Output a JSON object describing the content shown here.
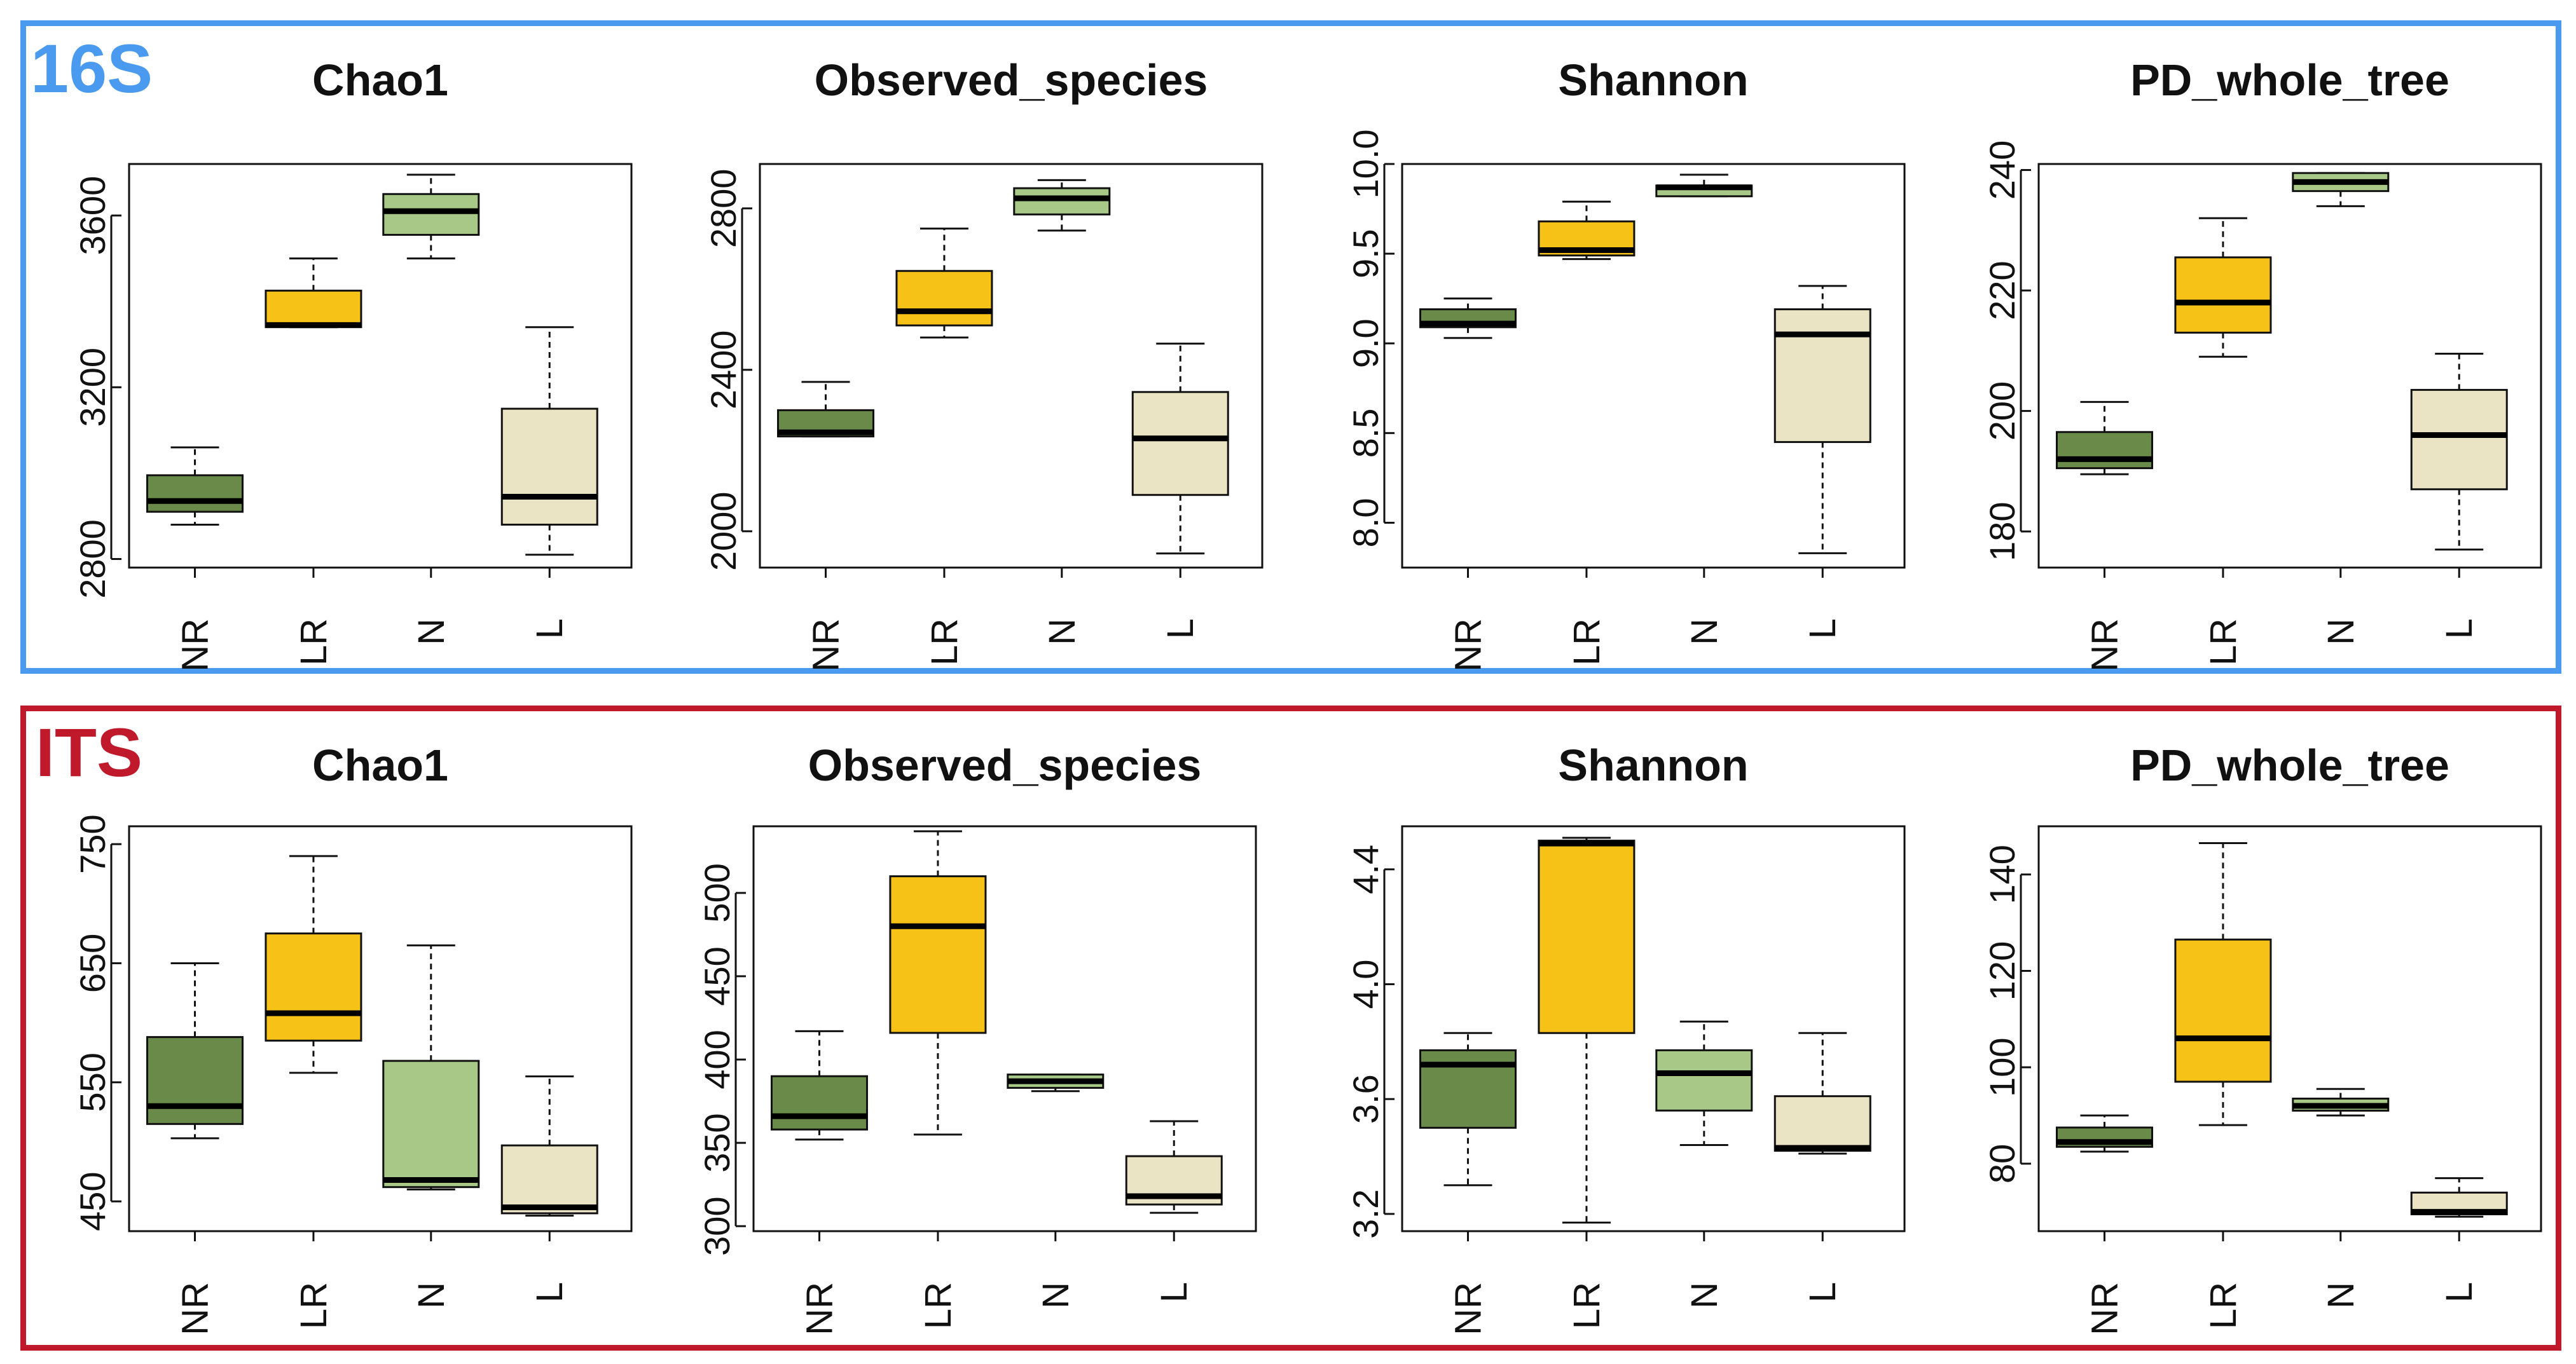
{
  "panels": [
    {
      "label": "16S",
      "color": "#4a9bf0"
    },
    {
      "label": "ITS",
      "color": "#c0192c"
    }
  ],
  "colors": {
    "NR": "#6a8a4a",
    "LR": "#f7c217",
    "N": "#a8c888",
    "L": "#ebe4c4"
  },
  "chart_data": [
    {
      "type": "boxplot",
      "panel": "16S",
      "title": "Chao1",
      "categories": [
        "NR",
        "LR",
        "N",
        "L"
      ],
      "yticks": [
        2800,
        3200,
        3600
      ],
      "ylim": [
        2780,
        3720
      ],
      "boxes": [
        {
          "min": 2880,
          "q1": 2910,
          "median": 2935,
          "q3": 2995,
          "max": 3060
        },
        {
          "min": 3340,
          "q1": 3340,
          "median": 3345,
          "q3": 3425,
          "max": 3500
        },
        {
          "min": 3500,
          "q1": 3555,
          "median": 3610,
          "q3": 3650,
          "max": 3695
        },
        {
          "min": 2810,
          "q1": 2880,
          "median": 2945,
          "q3": 3150,
          "max": 3340
        }
      ]
    },
    {
      "type": "boxplot",
      "panel": "16S",
      "title": "Observed_species",
      "categories": [
        "NR",
        "LR",
        "N",
        "L"
      ],
      "yticks": [
        2000,
        2400,
        2800
      ],
      "ylim": [
        1910,
        2910
      ],
      "boxes": [
        {
          "min": 2235,
          "q1": 2235,
          "median": 2245,
          "q3": 2300,
          "max": 2370
        },
        {
          "min": 2480,
          "q1": 2510,
          "median": 2545,
          "q3": 2645,
          "max": 2750
        },
        {
          "min": 2745,
          "q1": 2785,
          "median": 2825,
          "q3": 2850,
          "max": 2870
        },
        {
          "min": 1945,
          "q1": 2090,
          "median": 2230,
          "q3": 2345,
          "max": 2465
        }
      ]
    },
    {
      "type": "boxplot",
      "panel": "16S",
      "title": "Shannon",
      "categories": [
        "NR",
        "LR",
        "N",
        "L"
      ],
      "yticks": [
        8.0,
        8.5,
        9.0,
        9.5,
        10.0
      ],
      "ylim": [
        7.75,
        10.0
      ],
      "boxes": [
        {
          "min": 9.03,
          "q1": 9.09,
          "median": 9.11,
          "q3": 9.19,
          "max": 9.25
        },
        {
          "min": 9.47,
          "q1": 9.49,
          "median": 9.52,
          "q3": 9.68,
          "max": 9.79
        },
        {
          "min": 9.82,
          "q1": 9.82,
          "median": 9.87,
          "q3": 9.88,
          "max": 9.94
        },
        {
          "min": 7.83,
          "q1": 8.45,
          "median": 9.05,
          "q3": 9.19,
          "max": 9.32
        }
      ]
    },
    {
      "type": "boxplot",
      "panel": "16S",
      "title": "PD_whole_tree",
      "categories": [
        "NR",
        "LR",
        "N",
        "L"
      ],
      "yticks": [
        180,
        200,
        220,
        240
      ],
      "ylim": [
        174,
        241
      ],
      "boxes": [
        {
          "min": 189.5,
          "q1": 190.5,
          "median": 192,
          "q3": 196.5,
          "max": 201.5
        },
        {
          "min": 209,
          "q1": 213,
          "median": 218,
          "q3": 225.5,
          "max": 232
        },
        {
          "min": 234,
          "q1": 236.5,
          "median": 238,
          "q3": 239.5,
          "max": 239.5
        },
        {
          "min": 177,
          "q1": 187,
          "median": 196,
          "q3": 203.5,
          "max": 209.5
        }
      ]
    },
    {
      "type": "boxplot",
      "panel": "ITS",
      "title": "Chao1",
      "categories": [
        "NR",
        "LR",
        "N",
        "L"
      ],
      "yticks": [
        450,
        550,
        650,
        750
      ],
      "ylim": [
        425,
        765
      ],
      "boxes": [
        {
          "min": 503,
          "q1": 515,
          "median": 530,
          "q3": 588,
          "max": 650
        },
        {
          "min": 558,
          "q1": 585,
          "median": 608,
          "q3": 675,
          "max": 740
        },
        {
          "min": 460,
          "q1": 462,
          "median": 468,
          "q3": 568,
          "max": 665
        },
        {
          "min": 438,
          "q1": 440,
          "median": 445,
          "q3": 497,
          "max": 555
        }
      ]
    },
    {
      "type": "boxplot",
      "panel": "ITS",
      "title": "Observed_species",
      "categories": [
        "NR",
        "LR",
        "N",
        "L"
      ],
      "yticks": [
        300,
        350,
        400,
        450,
        500
      ],
      "ylim": [
        297,
        540
      ],
      "boxes": [
        {
          "min": 352,
          "q1": 358,
          "median": 366,
          "q3": 390,
          "max": 417
        },
        {
          "min": 355,
          "q1": 416,
          "median": 480,
          "q3": 510,
          "max": 537
        },
        {
          "min": 381,
          "q1": 383,
          "median": 387,
          "q3": 391,
          "max": 391
        },
        {
          "min": 308,
          "q1": 313,
          "median": 318,
          "q3": 342,
          "max": 363
        }
      ]
    },
    {
      "type": "boxplot",
      "panel": "ITS",
      "title": "Shannon",
      "categories": [
        "NR",
        "LR",
        "N",
        "L"
      ],
      "yticks": [
        3.2,
        3.6,
        4.0,
        4.4
      ],
      "ylim": [
        3.14,
        4.55
      ],
      "boxes": [
        {
          "min": 3.3,
          "q1": 3.5,
          "median": 3.72,
          "q3": 3.77,
          "max": 3.83
        },
        {
          "min": 3.17,
          "q1": 3.83,
          "median": 4.49,
          "q3": 4.5,
          "max": 4.51
        },
        {
          "min": 3.44,
          "q1": 3.56,
          "median": 3.69,
          "q3": 3.77,
          "max": 3.87
        },
        {
          "min": 3.41,
          "q1": 3.42,
          "median": 3.43,
          "q3": 3.61,
          "max": 3.83
        }
      ]
    },
    {
      "type": "boxplot",
      "panel": "ITS",
      "title": "PD_whole_tree",
      "categories": [
        "NR",
        "LR",
        "N",
        "L"
      ],
      "yticks": [
        80,
        100,
        120,
        140
      ],
      "ylim": [
        66,
        150
      ],
      "boxes": [
        {
          "min": 82.5,
          "q1": 83.5,
          "median": 84.5,
          "q3": 87.5,
          "max": 90
        },
        {
          "min": 88,
          "q1": 97,
          "median": 106,
          "q3": 126.5,
          "max": 146.5
        },
        {
          "min": 90,
          "q1": 91,
          "median": 92,
          "q3": 93.5,
          "max": 95.5
        },
        {
          "min": 69,
          "q1": 69.5,
          "median": 70,
          "q3": 74,
          "max": 77
        }
      ]
    }
  ]
}
